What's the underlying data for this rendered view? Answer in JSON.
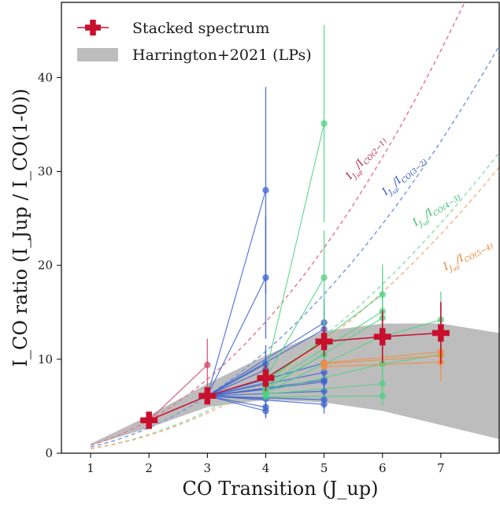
{
  "chart_data": {
    "type": "line",
    "xlabel": "CO Transition (J_up)",
    "ylabel": "I_CO ratio (I_Jup / I_CO(1-0))",
    "xlim": [
      0.5,
      8.0
    ],
    "ylim": [
      0,
      48
    ],
    "xticks": [
      1,
      2,
      3,
      4,
      5,
      6,
      7
    ],
    "yticks": [
      0,
      10,
      20,
      30,
      40
    ],
    "grid": false,
    "legend_position": "top-left",
    "colors": {
      "stacked": "#c8102e",
      "band": "#bdbdbd",
      "jup2": "#d2456e",
      "jup3": "#3c64d2",
      "jup4": "#50d282",
      "jup5": "#f58c3c"
    },
    "legend": {
      "stacked_label": "Stacked spectrum",
      "band_label": "Harrington+2021 (LPs)"
    },
    "stacked_spectrum": {
      "x": [
        2,
        3,
        4,
        5,
        6,
        7
      ],
      "y": [
        3.5,
        6.1,
        8.0,
        11.9,
        12.4,
        12.8
      ],
      "yerr": [
        0.5,
        0.8,
        1.4,
        1.6,
        2.8,
        3.3
      ]
    },
    "harrington_band": {
      "x": [
        1,
        2,
        3,
        4,
        5,
        6,
        7,
        8
      ],
      "lower": [
        0.8,
        2.7,
        4.9,
        5.7,
        5.4,
        4.5,
        3.0,
        1.5
      ],
      "upper": [
        1.0,
        4.0,
        7.4,
        10.4,
        13.0,
        13.8,
        13.8,
        12.8
      ]
    },
    "thermal_curves": [
      {
        "label_main": "I",
        "label_sub1": "J",
        "label_sub2": "up",
        "label_mid": "/I",
        "label_sub3": "CO(2−1)",
        "color": "#e87a96",
        "jref": 2,
        "text_color": "#b0224a"
      },
      {
        "label_main": "I",
        "label_sub1": "J",
        "label_sub2": "up",
        "label_mid": "/I",
        "label_sub3": "CO(3−2)",
        "color": "#7b9be4",
        "jref": 3,
        "text_color": "#2a4fc0"
      },
      {
        "label_main": "I",
        "label_sub1": "J",
        "label_sub2": "up",
        "label_mid": "/I",
        "label_sub3": "CO(4−3)",
        "color": "#8fe0b0",
        "jref": 4,
        "text_color": "#2fb866"
      },
      {
        "label_main": "I",
        "label_sub1": "J",
        "label_sub2": "up",
        "label_mid": "/I",
        "label_sub3": "CO(5−4)",
        "color": "#f8b488",
        "jref": 5,
        "text_color": "#ee7a20"
      }
    ],
    "individual_sources": [
      {
        "color": "#d2456e",
        "x": [
          2,
          3
        ],
        "y": [
          3.5,
          9.4
        ],
        "yerr": [
          0,
          2.8
        ]
      },
      {
        "color": "#3c64d2",
        "x": [
          3,
          4
        ],
        "y": [
          6.1,
          28.0
        ],
        "yerr": [
          0,
          11.0
        ]
      },
      {
        "color": "#3c64d2",
        "x": [
          3,
          4
        ],
        "y": [
          6.1,
          18.7
        ],
        "yerr": [
          0,
          6.5
        ]
      },
      {
        "color": "#3c64d2",
        "x": [
          3,
          4
        ],
        "y": [
          6.1,
          9.5
        ],
        "yerr": [
          0,
          2.0
        ]
      },
      {
        "color": "#3c64d2",
        "x": [
          3,
          4
        ],
        "y": [
          6.1,
          8.9
        ],
        "yerr": [
          0,
          1.8
        ]
      },
      {
        "color": "#3c64d2",
        "x": [
          3,
          4
        ],
        "y": [
          6.1,
          7.5
        ],
        "yerr": [
          0,
          1.5
        ]
      },
      {
        "color": "#3c64d2",
        "x": [
          3,
          4
        ],
        "y": [
          6.1,
          6.8
        ],
        "yerr": [
          0,
          1.2
        ]
      },
      {
        "color": "#3c64d2",
        "x": [
          3,
          4
        ],
        "y": [
          6.1,
          5.8
        ],
        "yerr": [
          0,
          1.0
        ]
      },
      {
        "color": "#3c64d2",
        "x": [
          3,
          4
        ],
        "y": [
          6.1,
          4.9
        ],
        "yerr": [
          0,
          1.0
        ]
      },
      {
        "color": "#3c64d2",
        "x": [
          3,
          4
        ],
        "y": [
          6.1,
          4.5
        ],
        "yerr": [
          0,
          0.8
        ]
      },
      {
        "color": "#3c64d2",
        "x": [
          3,
          5
        ],
        "y": [
          6.1,
          13.9
        ],
        "yerr": [
          0,
          2.5
        ]
      },
      {
        "color": "#3c64d2",
        "x": [
          3,
          5
        ],
        "y": [
          6.1,
          13.2
        ],
        "yerr": [
          0,
          2.0
        ]
      },
      {
        "color": "#3c64d2",
        "x": [
          3,
          5
        ],
        "y": [
          6.1,
          9.6
        ],
        "yerr": [
          0,
          1.5
        ]
      },
      {
        "color": "#3c64d2",
        "x": [
          3,
          5
        ],
        "y": [
          6.1,
          8.6
        ],
        "yerr": [
          0,
          1.2
        ]
      },
      {
        "color": "#3c64d2",
        "x": [
          3,
          5
        ],
        "y": [
          6.1,
          7.8
        ],
        "yerr": [
          0,
          1.0
        ]
      },
      {
        "color": "#3c64d2",
        "x": [
          3,
          5
        ],
        "y": [
          6.1,
          7.6
        ],
        "yerr": [
          0,
          1.0
        ]
      },
      {
        "color": "#3c64d2",
        "x": [
          3,
          5
        ],
        "y": [
          6.1,
          6.6
        ],
        "yerr": [
          0,
          1.0
        ]
      },
      {
        "color": "#3c64d2",
        "x": [
          3,
          5
        ],
        "y": [
          6.1,
          5.7
        ],
        "yerr": [
          0,
          1.0
        ]
      },
      {
        "color": "#3c64d2",
        "x": [
          3,
          5
        ],
        "y": [
          6.1,
          5.2
        ],
        "yerr": [
          0,
          1.0
        ]
      },
      {
        "color": "#50d282",
        "x": [
          4,
          5
        ],
        "y": [
          8.5,
          35.1
        ],
        "yerr": [
          0,
          10.5
        ]
      },
      {
        "color": "#50d282",
        "x": [
          4,
          5
        ],
        "y": [
          8.0,
          18.7
        ],
        "yerr": [
          0,
          5.0
        ]
      },
      {
        "color": "#50d282",
        "x": [
          4,
          5
        ],
        "y": [
          7.8,
          12.0
        ],
        "yerr": [
          0,
          2.0
        ]
      },
      {
        "color": "#50d282",
        "x": [
          4,
          5
        ],
        "y": [
          7.0,
          10.5
        ],
        "yerr": [
          0,
          1.8
        ]
      },
      {
        "color": "#50d282",
        "x": [
          4,
          6
        ],
        "y": [
          7.5,
          16.9
        ],
        "yerr": [
          0,
          3.2
        ]
      },
      {
        "color": "#50d282",
        "x": [
          4,
          6
        ],
        "y": [
          7.2,
          15.1
        ],
        "yerr": [
          0,
          3.0
        ]
      },
      {
        "color": "#50d282",
        "x": [
          4,
          6
        ],
        "y": [
          6.8,
          14.4
        ],
        "yerr": [
          0,
          2.5
        ]
      },
      {
        "color": "#50d282",
        "x": [
          4,
          6
        ],
        "y": [
          6.5,
          12.5
        ],
        "yerr": [
          0,
          2.0
        ]
      },
      {
        "color": "#50d282",
        "x": [
          4,
          6
        ],
        "y": [
          6.6,
          9.5
        ],
        "yerr": [
          0,
          1.5
        ]
      },
      {
        "color": "#50d282",
        "x": [
          4,
          6
        ],
        "y": [
          6.3,
          7.4
        ],
        "yerr": [
          0,
          1.2
        ]
      },
      {
        "color": "#50d282",
        "x": [
          4,
          6
        ],
        "y": [
          6.0,
          6.1
        ],
        "yerr": [
          0,
          1.0
        ]
      },
      {
        "color": "#50d282",
        "x": [
          6,
          7
        ],
        "y": [
          12.4,
          14.2
        ],
        "yerr": [
          0,
          3.0
        ]
      },
      {
        "color": "#50d282",
        "x": [
          6,
          7
        ],
        "y": [
          9.5,
          10.5
        ],
        "yerr": [
          0,
          1.5
        ]
      },
      {
        "color": "#f58c3c",
        "x": [
          5,
          7
        ],
        "y": [
          9.5,
          10.4
        ],
        "yerr": [
          0,
          1.5
        ]
      },
      {
        "color": "#f58c3c",
        "x": [
          5,
          7
        ],
        "y": [
          9.2,
          9.7
        ],
        "yerr": [
          0,
          2.0
        ]
      },
      {
        "color": "#f58c3c",
        "x": [
          5,
          7
        ],
        "y": [
          9.6,
          10.8
        ],
        "yerr": [
          0,
          1.2
        ]
      }
    ]
  }
}
